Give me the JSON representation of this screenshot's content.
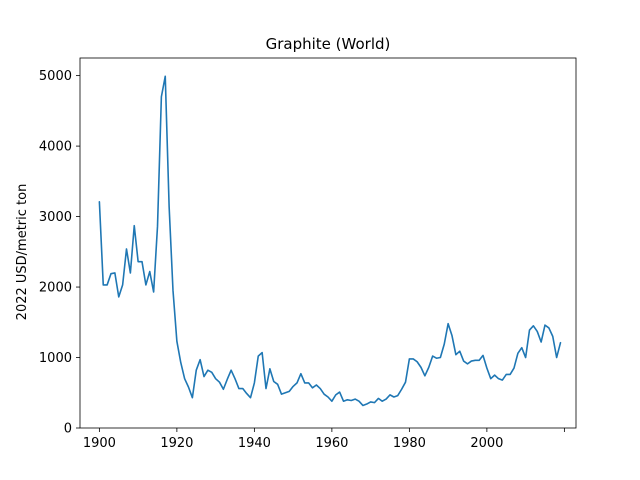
{
  "chart_data": {
    "type": "line",
    "title": "Graphite (World)",
    "xlabel": "",
    "ylabel": "2022 USD/metric ton",
    "xlim": [
      1895,
      2023
    ],
    "ylim": [
      0,
      5250
    ],
    "grid": false,
    "x_ticks": [
      1900,
      1920,
      1940,
      1960,
      1980,
      2000,
      2020
    ],
    "x_tick_labels": [
      "1900",
      "1920",
      "1940",
      "1960",
      "1980",
      "2000",
      ""
    ],
    "y_ticks": [
      0,
      1000,
      2000,
      3000,
      4000,
      5000
    ],
    "y_tick_labels": [
      "0",
      "1000",
      "2000",
      "3000",
      "4000",
      "5000"
    ],
    "series": [
      {
        "color": "#1f77b4",
        "x": [
          1900,
          1901,
          1902,
          1903,
          1904,
          1905,
          1906,
          1907,
          1908,
          1909,
          1910,
          1911,
          1912,
          1913,
          1914,
          1915,
          1916,
          1917,
          1918,
          1919,
          1920,
          1921,
          1922,
          1923,
          1924,
          1925,
          1926,
          1927,
          1928,
          1929,
          1930,
          1931,
          1932,
          1933,
          1934,
          1935,
          1936,
          1937,
          1938,
          1939,
          1940,
          1941,
          1942,
          1943,
          1944,
          1945,
          1946,
          1947,
          1948,
          1949,
          1950,
          1951,
          1952,
          1953,
          1954,
          1955,
          1956,
          1957,
          1958,
          1959,
          1960,
          1961,
          1962,
          1963,
          1964,
          1965,
          1966,
          1967,
          1968,
          1969,
          1970,
          1971,
          1972,
          1973,
          1974,
          1975,
          1976,
          1977,
          1978,
          1979,
          1980,
          1981,
          1982,
          1983,
          1984,
          1985,
          1986,
          1987,
          1988,
          1989,
          1990,
          1991,
          1992,
          1993,
          1994,
          1995,
          1996,
          1997,
          1998,
          1999,
          2000,
          2001,
          2002,
          2003,
          2004,
          2005,
          2006,
          2007,
          2008,
          2009,
          2010,
          2011,
          2012,
          2013,
          2014,
          2015,
          2016,
          2017,
          2018,
          2019
        ],
        "y": [
          3210,
          2030,
          2030,
          2190,
          2200,
          1860,
          2030,
          2540,
          2200,
          2870,
          2360,
          2360,
          2030,
          2220,
          1930,
          2860,
          4700,
          4990,
          3140,
          1950,
          1230,
          930,
          700,
          580,
          430,
          820,
          970,
          730,
          820,
          790,
          700,
          650,
          550,
          690,
          820,
          700,
          560,
          560,
          490,
          430,
          640,
          1020,
          1070,
          560,
          840,
          660,
          620,
          480,
          500,
          520,
          590,
          640,
          770,
          640,
          640,
          570,
          610,
          560,
          480,
          440,
          380,
          470,
          510,
          380,
          400,
          390,
          410,
          380,
          320,
          340,
          370,
          360,
          420,
          380,
          410,
          470,
          440,
          460,
          550,
          650,
          980,
          980,
          940,
          860,
          740,
          860,
          1020,
          990,
          1000,
          1190,
          1480,
          1310,
          1040,
          1090,
          950,
          910,
          950,
          960,
          960,
          1030,
          850,
          700,
          750,
          700,
          680,
          760,
          760,
          850,
          1060,
          1140,
          1000,
          1390,
          1450,
          1370,
          1220,
          1460,
          1420,
          1300,
          1000,
          1210
        ]
      }
    ]
  }
}
